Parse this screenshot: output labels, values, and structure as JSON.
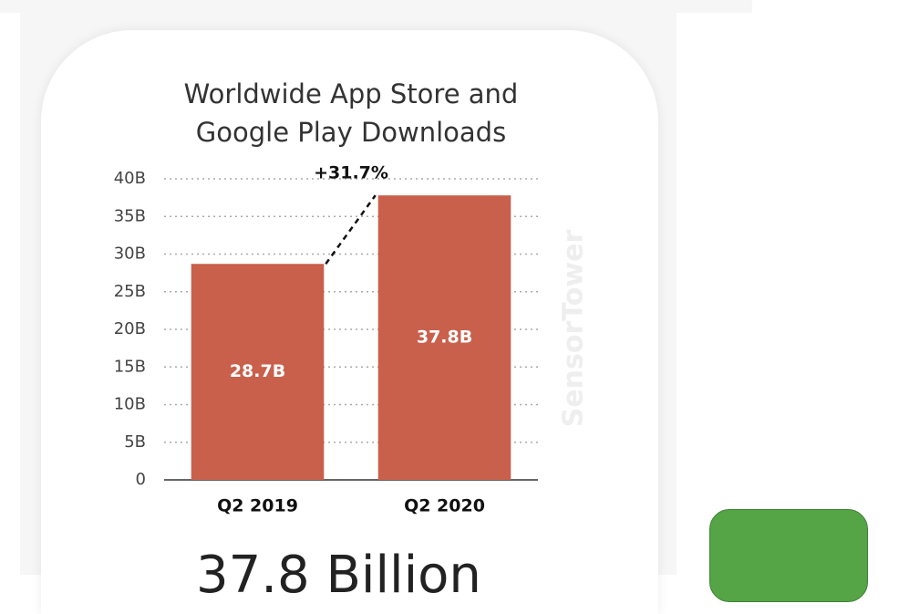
{
  "chart_data": {
    "type": "bar",
    "title": [
      "Worldwide App Store and",
      "Google Play Downloads"
    ],
    "categories": [
      "Q2 2019",
      "Q2 2020"
    ],
    "values": [
      28.7,
      37.8
    ],
    "value_labels": [
      "28.7B",
      "37.8B"
    ],
    "color": "#c9604c",
    "ylim": [
      0,
      40
    ],
    "yticks": [
      0,
      {
        "value": 5,
        "label": "5B"
      },
      {
        "value": 10,
        "label": "10B"
      },
      {
        "value": 15,
        "label": "15B"
      },
      {
        "value": 20,
        "label": "20B"
      },
      {
        "value": 25,
        "label": "25B"
      },
      {
        "value": 30,
        "label": "30B"
      },
      {
        "value": 35,
        "label": "35B"
      },
      {
        "value": 40,
        "label": "40B"
      }
    ],
    "grid": true,
    "annotation": "+31.7%",
    "watermark": "SensorTower"
  },
  "headline": "37.8 Billion"
}
